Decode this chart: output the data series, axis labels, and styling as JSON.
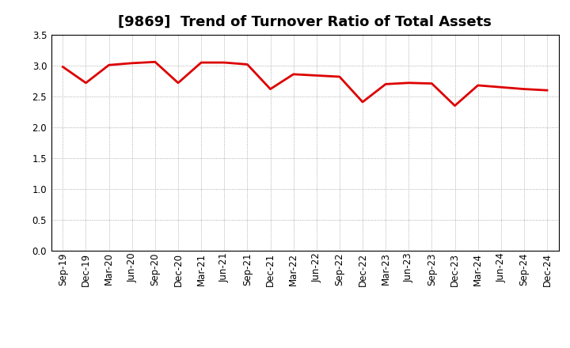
{
  "title": "[9869]  Trend of Turnover Ratio of Total Assets",
  "labels": [
    "Sep-19",
    "Dec-19",
    "Mar-20",
    "Jun-20",
    "Sep-20",
    "Dec-20",
    "Mar-21",
    "Jun-21",
    "Sep-21",
    "Dec-21",
    "Mar-22",
    "Jun-22",
    "Sep-22",
    "Dec-22",
    "Mar-23",
    "Jun-23",
    "Sep-23",
    "Dec-23",
    "Mar-24",
    "Jun-24",
    "Sep-24",
    "Dec-24"
  ],
  "values": [
    2.98,
    2.72,
    3.01,
    3.04,
    3.06,
    2.72,
    3.05,
    3.05,
    3.02,
    2.62,
    2.86,
    2.84,
    2.82,
    2.41,
    2.7,
    2.72,
    2.71,
    2.35,
    2.68,
    2.65,
    2.62,
    2.6
  ],
  "line_color": "#dd0000",
  "line_width": 2.0,
  "ylim": [
    0.0,
    3.5
  ],
  "yticks": [
    0.0,
    0.5,
    1.0,
    1.5,
    2.0,
    2.5,
    3.0,
    3.5
  ],
  "background_color": "#ffffff",
  "plot_bg_color": "#ffffff",
  "grid_color": "#999999",
  "title_fontsize": 13,
  "tick_fontsize": 8.5
}
